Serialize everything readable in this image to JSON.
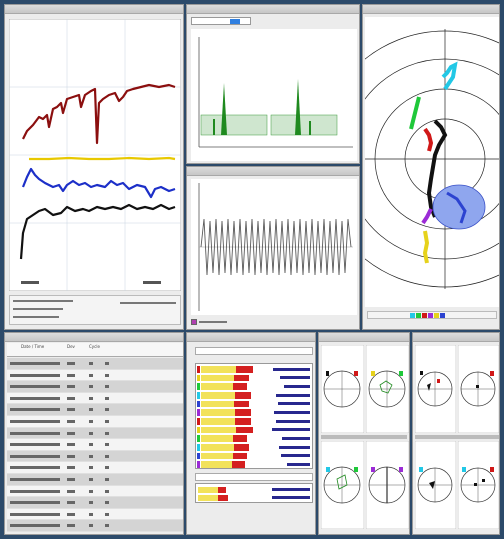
{
  "colors": {
    "trend_dark_red": "#8b0f0f",
    "trend_yellow": "#e8c800",
    "trend_blue": "#1c2fc8",
    "trend_black": "#111111",
    "spectrum_green": "#1f8a1f",
    "polar_cyan": "#22c8e6",
    "polar_green": "#1fc83a",
    "polar_red": "#d01818",
    "polar_blue_fill": "#8fa6ee",
    "polar_purple": "#9b2bd6",
    "polar_yellow": "#e6d21c",
    "bar_yellow": "#f2e25a",
    "bar_red": "#d42020",
    "bar_blue": "#28288e",
    "window_background": "#2c4a6a",
    "panel_background": "#ececec"
  },
  "icons": {
    "legend_swatch_icon": "square-swatch",
    "status_swatch_icon": "square-swatch"
  },
  "event_table": {
    "headers": [
      "Date / Time",
      "Dev",
      "Cycle"
    ],
    "row_count": 15,
    "highlighted_rows": [
      0,
      2,
      4,
      6,
      8,
      10,
      12,
      14
    ]
  },
  "bar_panel": {
    "row_fills": [
      0.78,
      0.62,
      0.55,
      0.7,
      0.66,
      0.74,
      0.71,
      0.8,
      0.58,
      0.64,
      0.6,
      0.48
    ]
  }
}
